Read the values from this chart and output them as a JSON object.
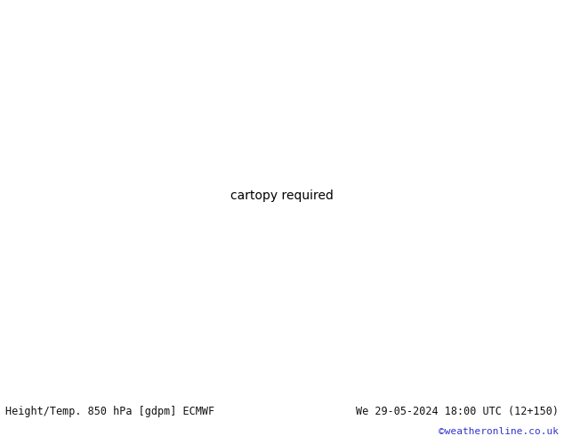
{
  "title_left": "Height/Temp. 850 hPa [gdpm] ECMWF",
  "title_right": "We 29-05-2024 18:00 UTC (12+150)",
  "copyright": "©weatheronline.co.uk",
  "land_color": "#c8f0a0",
  "ocean_color": "#e8e8ee",
  "border_color": "#aaaaaa",
  "fig_width": 6.34,
  "fig_height": 4.9,
  "dpi": 100,
  "bottom_bar_color": "#e0e0e0",
  "copyright_color": "#3333cc",
  "extent": [
    -110,
    -20,
    -60,
    15
  ],
  "temp_colors": {
    "20": "#dd0000",
    "15": "#e07820",
    "10": "#e07820",
    "5": "#90c030",
    "0": "#00bbaa",
    "-5": "#00cccc"
  },
  "height_color": "#000000"
}
